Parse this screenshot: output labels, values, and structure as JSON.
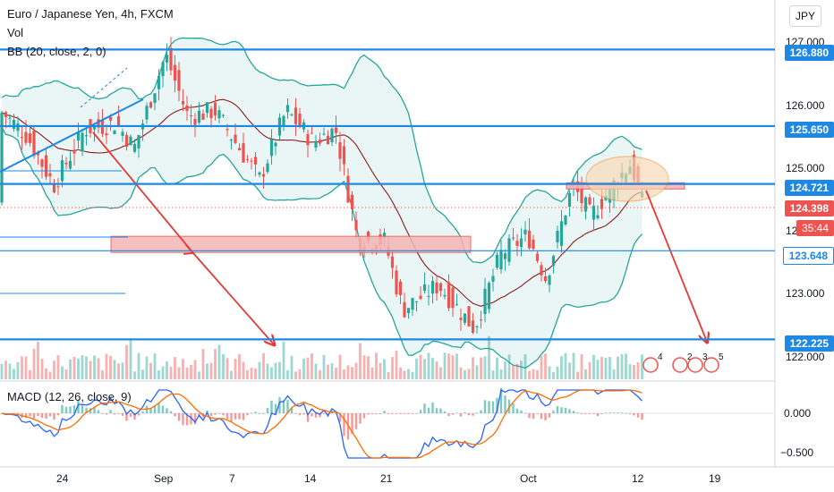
{
  "header": {
    "symbol_title": "Euro / Japanese Yen, 4h, FXCM",
    "vol_label": "Vol",
    "bb_label": "BB (20, close, 2, 0)",
    "currency_button": "JPY"
  },
  "macd": {
    "label": "MACD (12, 26, close, 9)",
    "ticks": [
      "0.000",
      "−0.500"
    ]
  },
  "colors": {
    "level_line": "#1e88e5",
    "arrow": "#e53935",
    "bb_fill": "#e0f2f1",
    "bb_line": "#26a69a",
    "basis": "#8b1a1a",
    "up": "#26a69a",
    "down": "#ef5350",
    "price_tag": "#ef5350",
    "zone_fill": "#f4b6b6",
    "ellipse_fill": "#fbd8b4"
  },
  "price_scale": {
    "ticks": [
      "127.000",
      "126.000",
      "125.000",
      "124.000",
      "123.000",
      "122.000"
    ]
  },
  "tags": {
    "level_1": "126.880",
    "level_2": "125.650",
    "level_3": "124.721",
    "current_price": "124.398",
    "countdown": "35:44",
    "level_4": "123.648",
    "level_5": "122.225"
  },
  "time_scale": {
    "ticks": [
      "24",
      "Sep",
      "7",
      "14",
      "21",
      "Oct",
      "12",
      "19"
    ]
  },
  "event_markers": [
    "4",
    "2",
    "3",
    "5"
  ],
  "chart_data": {
    "type": "candlestick",
    "title": "Euro / Japanese Yen, 4h, FXCM",
    "ylim": [
      121.8,
      127.0
    ],
    "x_ticks": [
      "24",
      "Sep",
      "7",
      "14",
      "21",
      "Oct",
      "12",
      "19"
    ],
    "horizontal_levels": [
      126.88,
      125.65,
      124.721,
      123.648,
      122.225
    ],
    "current_price": 124.398,
    "zones": [
      {
        "from": 123.62,
        "to": 123.88
      },
      {
        "from": 124.64,
        "to": 124.74
      }
    ],
    "price_path": [
      {
        "x": 0,
        "y": 125.9
      },
      {
        "x": 30,
        "y": 125.5
      },
      {
        "x": 60,
        "y": 124.7
      },
      {
        "x": 95,
        "y": 125.6
      },
      {
        "x": 130,
        "y": 125.7
      },
      {
        "x": 150,
        "y": 125.3
      },
      {
        "x": 185,
        "y": 126.8
      },
      {
        "x": 210,
        "y": 125.8
      },
      {
        "x": 240,
        "y": 125.9
      },
      {
        "x": 290,
        "y": 124.8
      },
      {
        "x": 320,
        "y": 125.9
      },
      {
        "x": 350,
        "y": 125.4
      },
      {
        "x": 375,
        "y": 125.6
      },
      {
        "x": 400,
        "y": 123.8
      },
      {
        "x": 430,
        "y": 123.8
      },
      {
        "x": 450,
        "y": 122.7
      },
      {
        "x": 490,
        "y": 123.1
      },
      {
        "x": 530,
        "y": 122.4
      },
      {
        "x": 560,
        "y": 123.6
      },
      {
        "x": 590,
        "y": 123.9
      },
      {
        "x": 610,
        "y": 123.2
      },
      {
        "x": 640,
        "y": 124.7
      },
      {
        "x": 660,
        "y": 124.2
      },
      {
        "x": 690,
        "y": 124.8
      },
      {
        "x": 705,
        "y": 125.05
      },
      {
        "x": 718,
        "y": 124.4
      }
    ],
    "ylabel": "",
    "xlabel": ""
  }
}
